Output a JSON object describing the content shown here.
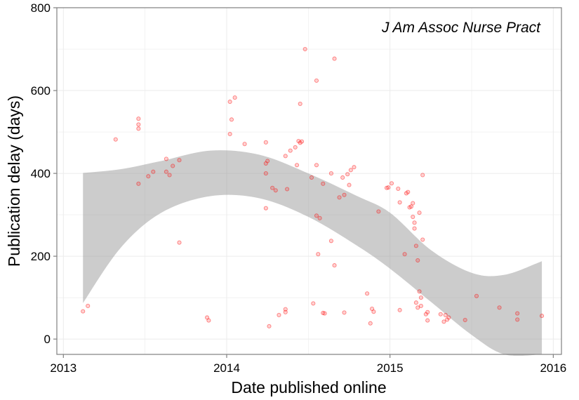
{
  "chart_data": {
    "type": "scatter",
    "title": "",
    "annotation": "J Am Assoc Nurse Pract",
    "xlabel": "Date published online",
    "ylabel": "Publication delay (days)",
    "xlim": [
      2012.96,
      2016.05
    ],
    "ylim": [
      -37,
      800
    ],
    "x_ticks": [
      2013,
      2014,
      2015,
      2016
    ],
    "x_tick_labels": [
      "2013",
      "2014",
      "2015",
      "2016"
    ],
    "y_ticks": [
      0,
      200,
      400,
      600,
      800
    ],
    "y_tick_labels": [
      "0",
      "200",
      "400",
      "600",
      "800"
    ],
    "grid": true,
    "colors": {
      "points": "#ff0000",
      "band": "#999999",
      "grid": "#ebebeb",
      "panel_border": "#808080"
    },
    "smooth": {
      "x": [
        2013.12,
        2013.35,
        2013.6,
        2013.9,
        2014.2,
        2014.5,
        2014.8,
        2015.0,
        2015.25,
        2015.5,
        2015.7,
        2015.93
      ],
      "upper": [
        401,
        410,
        430,
        455,
        445,
        400,
        345,
        305,
        215,
        160,
        155,
        188
      ],
      "lower": [
        87,
        220,
        305,
        345,
        340,
        295,
        225,
        170,
        90,
        10,
        -40,
        -55
      ]
    },
    "points": [
      [
        2013.12,
        67
      ],
      [
        2013.15,
        80
      ],
      [
        2013.32,
        482
      ],
      [
        2013.46,
        532
      ],
      [
        2013.46,
        518
      ],
      [
        2013.46,
        508
      ],
      [
        2013.46,
        375
      ],
      [
        2013.52,
        393
      ],
      [
        2013.55,
        404
      ],
      [
        2013.63,
        435
      ],
      [
        2013.63,
        404
      ],
      [
        2013.65,
        396
      ],
      [
        2013.67,
        418
      ],
      [
        2013.71,
        432
      ],
      [
        2013.71,
        233
      ],
      [
        2013.88,
        52
      ],
      [
        2013.89,
        45
      ],
      [
        2014.02,
        573
      ],
      [
        2014.02,
        495
      ],
      [
        2014.03,
        530
      ],
      [
        2014.05,
        583
      ],
      [
        2014.11,
        471
      ],
      [
        2014.24,
        475
      ],
      [
        2014.24,
        424
      ],
      [
        2014.24,
        400
      ],
      [
        2014.24,
        316
      ],
      [
        2014.25,
        430
      ],
      [
        2014.26,
        31
      ],
      [
        2014.28,
        365
      ],
      [
        2014.3,
        359
      ],
      [
        2014.32,
        58
      ],
      [
        2014.36,
        72
      ],
      [
        2014.36,
        65
      ],
      [
        2014.37,
        362
      ],
      [
        2014.36,
        442
      ],
      [
        2014.39,
        455
      ],
      [
        2014.42,
        463
      ],
      [
        2014.43,
        420
      ],
      [
        2014.44,
        478
      ],
      [
        2014.45,
        474
      ],
      [
        2014.45,
        568
      ],
      [
        2014.46,
        477
      ],
      [
        2014.48,
        700
      ],
      [
        2014.52,
        390
      ],
      [
        2014.53,
        86
      ],
      [
        2014.55,
        420
      ],
      [
        2014.55,
        624
      ],
      [
        2014.55,
        298
      ],
      [
        2014.56,
        205
      ],
      [
        2014.57,
        292
      ],
      [
        2014.59,
        375
      ],
      [
        2014.59,
        63
      ],
      [
        2014.6,
        62
      ],
      [
        2014.64,
        400
      ],
      [
        2014.64,
        237
      ],
      [
        2014.66,
        178
      ],
      [
        2014.66,
        677
      ],
      [
        2014.69,
        342
      ],
      [
        2014.71,
        390
      ],
      [
        2014.72,
        64
      ],
      [
        2014.72,
        348
      ],
      [
        2014.74,
        398
      ],
      [
        2014.75,
        372
      ],
      [
        2014.76,
        408
      ],
      [
        2014.78,
        415
      ],
      [
        2014.86,
        110
      ],
      [
        2014.88,
        38
      ],
      [
        2014.89,
        73
      ],
      [
        2014.9,
        66
      ],
      [
        2014.93,
        308
      ],
      [
        2014.98,
        365
      ],
      [
        2014.99,
        366
      ],
      [
        2015.01,
        376
      ],
      [
        2015.05,
        363
      ],
      [
        2015.06,
        330
      ],
      [
        2015.06,
        70
      ],
      [
        2015.09,
        205
      ],
      [
        2015.1,
        352
      ],
      [
        2015.11,
        355
      ],
      [
        2015.12,
        318
      ],
      [
        2015.13,
        320
      ],
      [
        2015.14,
        328
      ],
      [
        2015.14,
        295
      ],
      [
        2015.15,
        281
      ],
      [
        2015.15,
        267
      ],
      [
        2015.16,
        225
      ],
      [
        2015.16,
        88
      ],
      [
        2015.17,
        76
      ],
      [
        2015.17,
        190
      ],
      [
        2015.18,
        305
      ],
      [
        2015.18,
        115
      ],
      [
        2015.19,
        100
      ],
      [
        2015.2,
        240
      ],
      [
        2015.19,
        80
      ],
      [
        2015.2,
        396
      ],
      [
        2015.22,
        60
      ],
      [
        2015.23,
        65
      ],
      [
        2015.23,
        45
      ],
      [
        2015.31,
        60
      ],
      [
        2015.33,
        42
      ],
      [
        2015.34,
        58
      ],
      [
        2015.35,
        47
      ],
      [
        2015.36,
        52
      ],
      [
        2015.46,
        46
      ],
      [
        2015.53,
        104
      ],
      [
        2015.67,
        76
      ],
      [
        2015.78,
        62
      ],
      [
        2015.78,
        47
      ],
      [
        2015.93,
        56
      ]
    ]
  }
}
